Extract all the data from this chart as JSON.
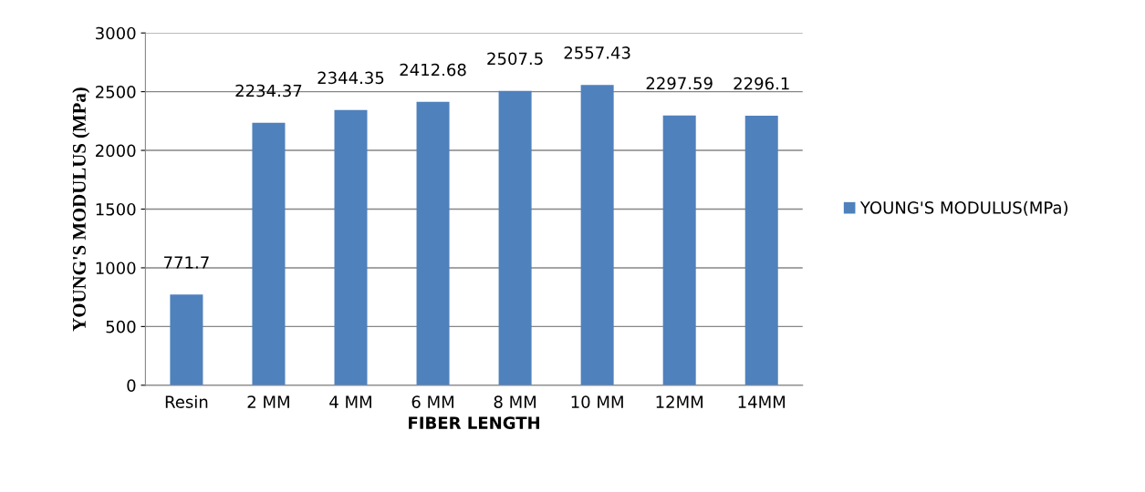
{
  "chart_data": {
    "type": "bar",
    "xlabel": "FIBER LENGTH",
    "ylabel": "YOUNG'S MODULUS (MPa)",
    "categories": [
      "Resin",
      "2 MM",
      "4 MM",
      "6 MM",
      "8 MM",
      "10 MM",
      "12MM",
      "14MM"
    ],
    "series": [
      {
        "name": "YOUNG'S MODULUS(MPa)",
        "color": "#4f81bd",
        "values": [
          771.7,
          2234.37,
          2344.35,
          2412.68,
          2507.5,
          2557.43,
          2297.59,
          2296.1
        ]
      }
    ],
    "ylim": [
      0,
      3000
    ],
    "yticks": [
      0,
      500,
      1000,
      1500,
      2000,
      2500,
      3000
    ],
    "grid": "y",
    "legend": "right",
    "data_labels": true
  }
}
